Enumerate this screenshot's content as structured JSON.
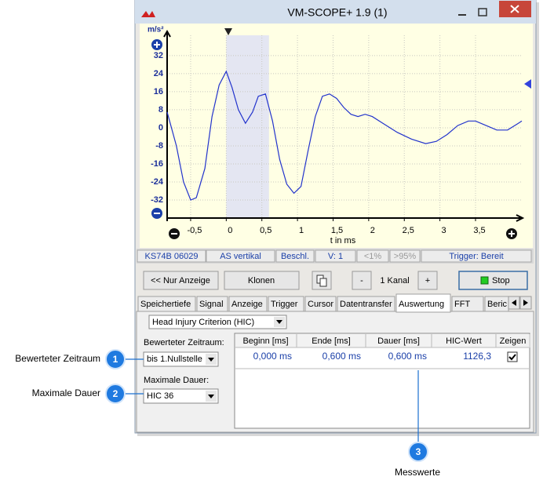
{
  "window": {
    "title": "VM-SCOPE+ 1.9 (1)"
  },
  "chart_data": {
    "type": "line",
    "y_unit": "m/s²",
    "x_label": "t in ms",
    "x": [
      -0.83,
      -0.7,
      -0.6,
      -0.5,
      -0.42,
      -0.3,
      -0.2,
      -0.1,
      0,
      0.08,
      0.17,
      0.27,
      0.37,
      0.45,
      0.55,
      0.65,
      0.75,
      0.85,
      0.95,
      1.05,
      1.15,
      1.25,
      1.35,
      1.45,
      1.55,
      1.65,
      1.75,
      1.85,
      1.95,
      2.05,
      2.2,
      2.4,
      2.6,
      2.8,
      2.95,
      3.1,
      3.25,
      3.4,
      3.5,
      3.65,
      3.8,
      3.95,
      4.1,
      4.15
    ],
    "values": [
      7,
      -8,
      -24,
      -32,
      -31,
      -18,
      5,
      19,
      25,
      18,
      8,
      2,
      7,
      14,
      15,
      3,
      -14,
      -25,
      -29,
      -26,
      -10,
      5,
      14,
      15,
      13,
      9,
      6,
      5,
      6,
      5,
      2,
      -2,
      -5,
      -7,
      -6,
      -3,
      1,
      3,
      3,
      1,
      -1,
      -1,
      2,
      3
    ],
    "color": "#2233cc",
    "xlim": [
      -0.83,
      4.15
    ],
    "ylim": [
      -40,
      41
    ],
    "xticks": [
      {
        "value": -0.5,
        "label": "-0,5"
      },
      0,
      {
        "value": 0.5,
        "label": "0,5"
      },
      1,
      {
        "value": 1.5,
        "label": "1,5"
      },
      2,
      {
        "value": 2.5,
        "label": "2,5"
      },
      3,
      {
        "value": 3.5,
        "label": "3,5"
      }
    ],
    "yticks": [
      32,
      24,
      16,
      8,
      0,
      -8,
      -16,
      -24,
      -32
    ],
    "grid": true,
    "highlight": [
      0,
      0.6
    ]
  },
  "status_bar": [
    "KS74B 06029",
    "AS vertikal",
    "Beschl.",
    "V: 1",
    "<1%",
    ">95%",
    "Trigger: Bereit"
  ],
  "toolbar": {
    "nur_anzeige": "<< Nur Anzeige",
    "klonen": "Klonen",
    "minus": "-",
    "kanal": "1 Kanal",
    "plus": "+",
    "stop": "Stop"
  },
  "tabs": [
    "Speichertiefe",
    "Signal",
    "Anzeige",
    "Trigger",
    "Cursor",
    "Datentransfer",
    "Auswertung",
    "FFT",
    "Beric"
  ],
  "active_tab": 6,
  "analysis": {
    "method": "Head Injury Criterion (HIC)",
    "period_label": "Bewerteter Zeitraum:",
    "period_value": "bis 1.Nullstelle",
    "duration_label": "Maximale Dauer:",
    "duration_value": "HIC 36",
    "table": {
      "headers": [
        "Beginn [ms]",
        "Ende [ms]",
        "Dauer [ms]",
        "HIC-Wert",
        "Zeigen"
      ],
      "rows": [
        [
          "0,000 ms",
          "0,600 ms",
          "0,600 ms",
          "1126,3",
          true
        ]
      ]
    }
  },
  "callouts": [
    {
      "number": "1",
      "label": "Bewerteter Zeitraum"
    },
    {
      "number": "2",
      "label": "Maximale Dauer"
    },
    {
      "number": "3",
      "label": "Messwerte"
    }
  ]
}
